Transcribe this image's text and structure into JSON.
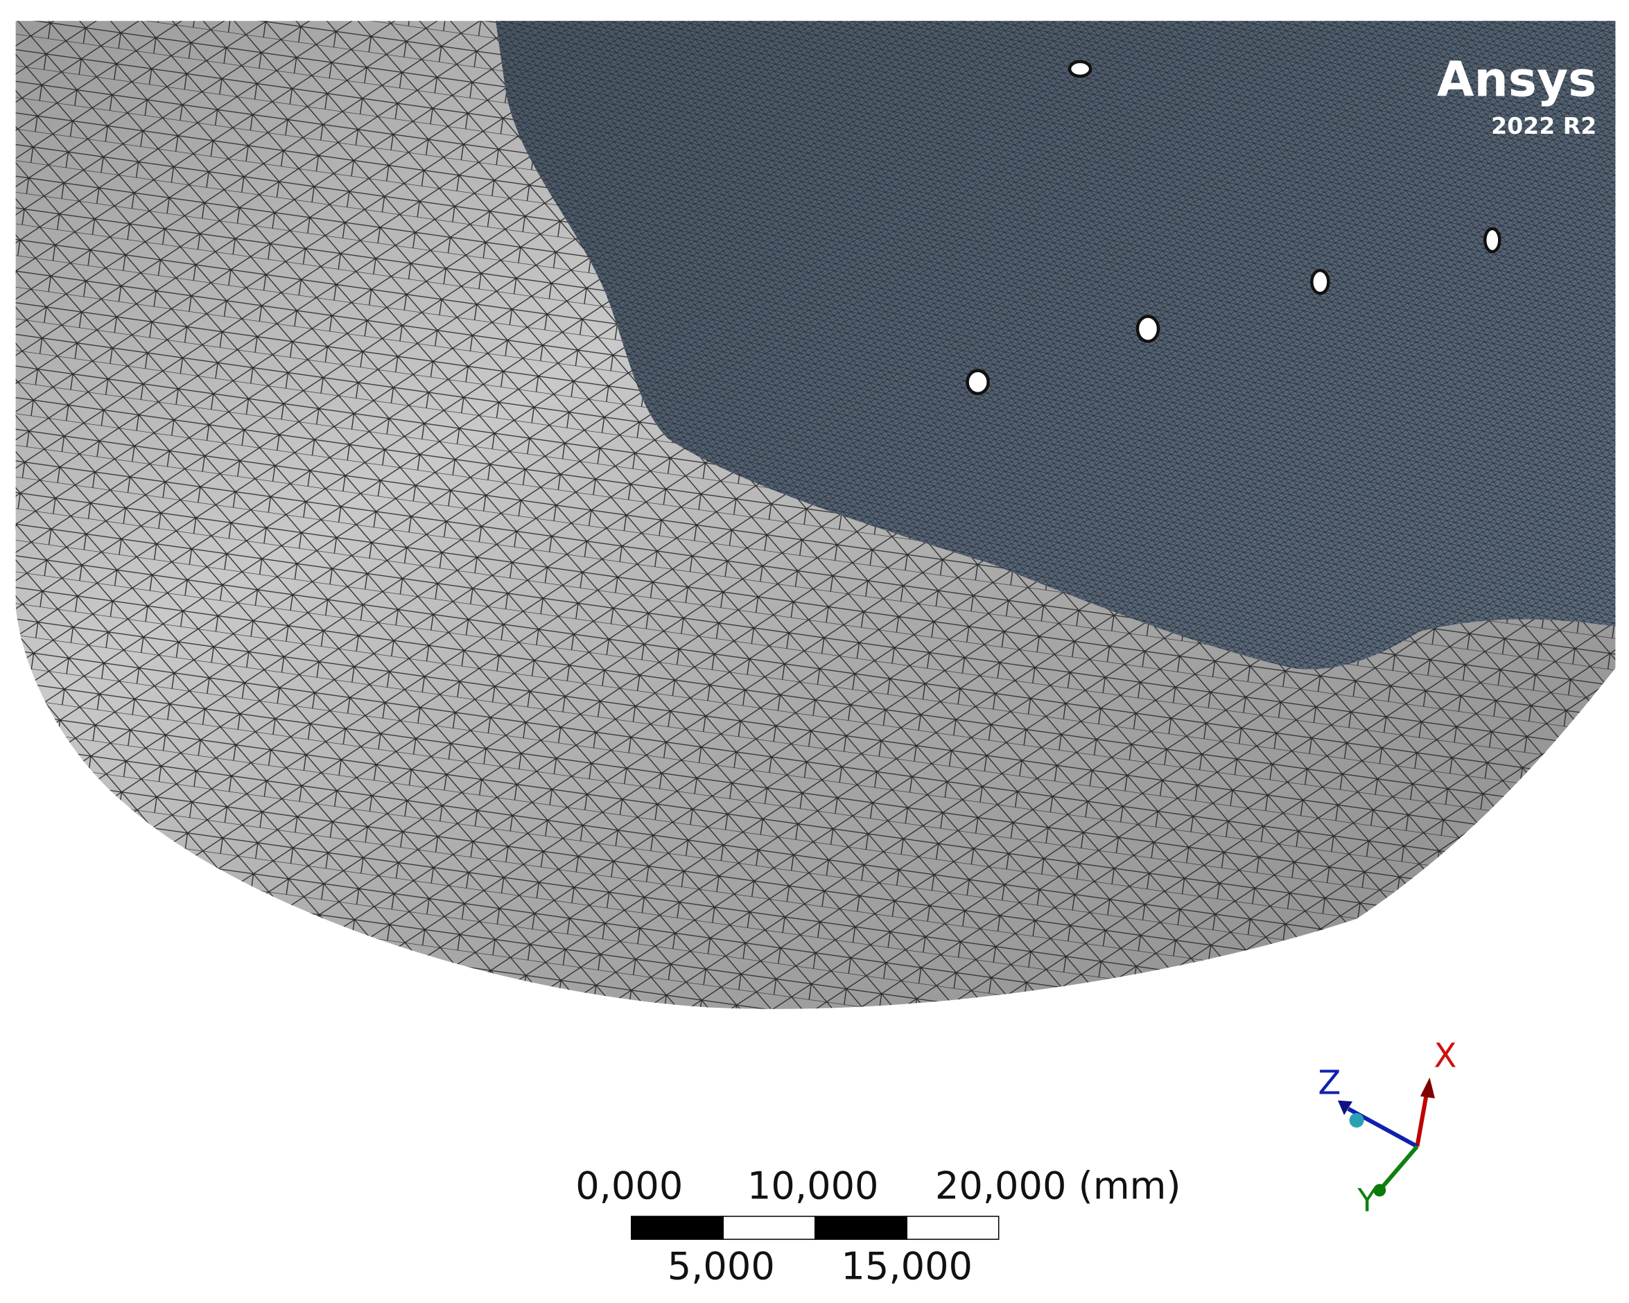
{
  "viewport": {
    "logo": {
      "brand": "Ansys",
      "version": "2022 R2"
    },
    "scale_bar": {
      "labels_top": [
        "0,000",
        "10,000",
        "20,000 (mm)"
      ],
      "labels_bottom": [
        "5,000",
        "15,000"
      ]
    },
    "triad": {
      "x": "X",
      "y": "Y",
      "z": "Z"
    }
  }
}
